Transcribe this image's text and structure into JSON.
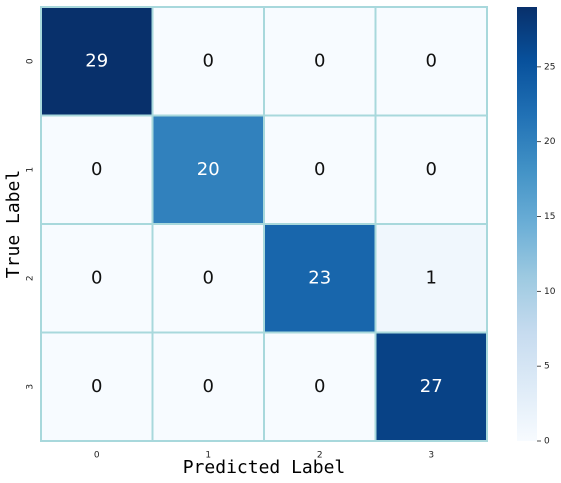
{
  "chart_data": {
    "type": "heatmap",
    "x_label": "Predicted Label",
    "y_label": "True Label",
    "x_categories": [
      "0",
      "1",
      "2",
      "3"
    ],
    "y_categories": [
      "0",
      "1",
      "2",
      "3"
    ],
    "values": [
      [
        29,
        0,
        0,
        0
      ],
      [
        0,
        20,
        0,
        0
      ],
      [
        0,
        0,
        23,
        1
      ],
      [
        0,
        0,
        0,
        27
      ]
    ],
    "colormap": "Blues",
    "clim": [
      0,
      29
    ],
    "cticks": [
      0,
      5,
      10,
      15,
      20,
      25
    ],
    "grid_color": "#a8d8dc",
    "y_tick_color": "#2e8b2e"
  }
}
